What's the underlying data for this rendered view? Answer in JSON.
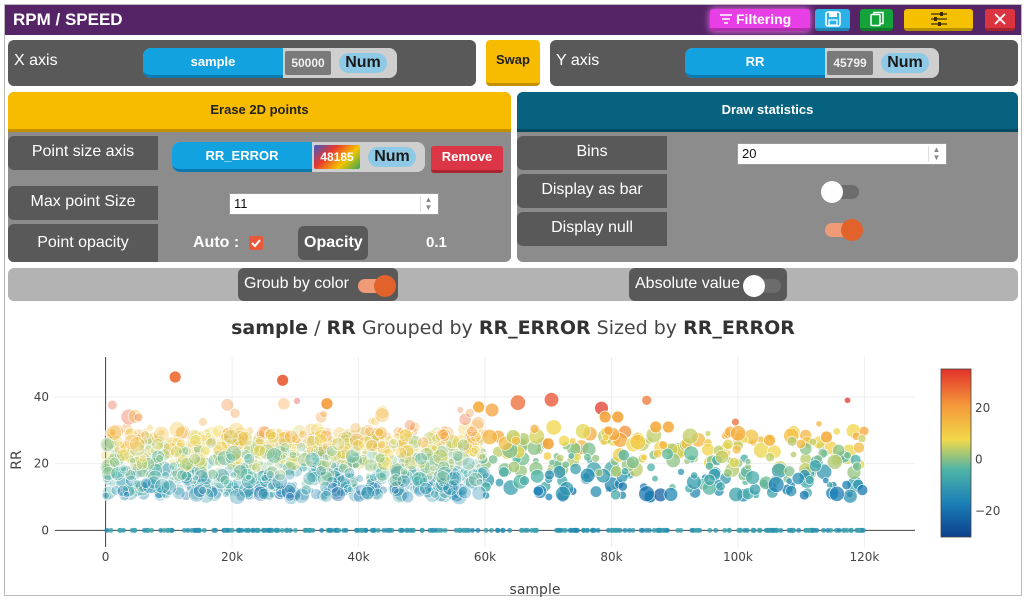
{
  "window": {
    "title": "RPM / SPEED"
  },
  "toolbar": {
    "filtering_label": "Filtering",
    "filtering_color": "#e83ee6",
    "icons": [
      "filter-icon",
      "save-icon",
      "copy-icon",
      "sliders-icon",
      "close-icon"
    ]
  },
  "x_axis": {
    "label": "X axis",
    "field": "sample",
    "count": "50000",
    "type": "Num"
  },
  "swap_label": "Swap",
  "y_axis": {
    "label": "Y axis",
    "field": "RR",
    "count": "45799",
    "type": "Num"
  },
  "left_panel": {
    "erase_label": "Erase 2D points",
    "point_size_axis": {
      "label": "Point size axis",
      "field": "RR_ERROR",
      "count": "48185",
      "type": "Num",
      "remove_label": "Remove"
    },
    "max_point_size": {
      "label": "Max point Size",
      "value": "11"
    },
    "point_opacity": {
      "label": "Point opacity",
      "auto_label": "Auto :",
      "auto_checked": true,
      "opacity_label": "Opacity",
      "opacity_value": "0.1"
    }
  },
  "right_panel": {
    "draw_label": "Draw statistics",
    "bins": {
      "label": "Bins",
      "value": "20"
    },
    "display_as_bar": {
      "label": "Display as bar",
      "on": false
    },
    "display_null": {
      "label": "Display null",
      "on": true
    }
  },
  "options": {
    "group_by_color": {
      "label": "Groub by color",
      "on": true
    },
    "absolute_value": {
      "label": "Absolute value",
      "on": false
    }
  },
  "chart": {
    "title_parts": {
      "x": "sample",
      "sep": " / ",
      "y": "RR",
      "grouped_text": " Grouped by ",
      "group": "RR_ERROR",
      "sized_text": " Sized by ",
      "size": "RR_ERROR"
    }
  },
  "chart_data": {
    "type": "scatter",
    "xlabel": "sample",
    "ylabel": "RR",
    "xlim": [
      -8000,
      128000
    ],
    "ylim": [
      -5,
      52
    ],
    "x_ticks": [
      0,
      20000,
      40000,
      60000,
      80000,
      100000,
      120000
    ],
    "x_tick_labels": [
      "0",
      "20k",
      "40k",
      "60k",
      "80k",
      "100k",
      "120k"
    ],
    "y_ticks": [
      0,
      20,
      40
    ],
    "y_tick_labels": [
      "0",
      "20",
      "40"
    ],
    "grid": true,
    "colorbar": {
      "range": [
        -30,
        35
      ],
      "ticks": [
        20,
        0,
        -20
      ],
      "tick_labels": [
        "20",
        "0",
        "−20"
      ],
      "colorscale": [
        "#0d3f8c",
        "#1a7fb6",
        "#4fb4a6",
        "#f1d84a",
        "#f59a3b",
        "#e2322a"
      ]
    },
    "series": [
      {
        "name": "points",
        "color_by": "RR_ERROR",
        "size_by": "RR_ERROR",
        "x_range": [
          0,
          120000
        ],
        "y_band": [
          10,
          30
        ],
        "dense_until": 60000
      },
      {
        "name": "null-band",
        "y": 0,
        "x_range": [
          0,
          120000
        ]
      }
    ],
    "highlighted_points": [
      {
        "x": 59000,
        "y": 37,
        "color_value": 18
      },
      {
        "x": 79000,
        "y": 34,
        "color_value": 20
      },
      {
        "x": 81000,
        "y": 34,
        "color_value": 20
      },
      {
        "x": 87000,
        "y": 31,
        "color_value": 18
      },
      {
        "x": 89000,
        "y": 31,
        "color_value": 18
      },
      {
        "x": 28000,
        "y": 45,
        "color_value": 30
      },
      {
        "x": 11000,
        "y": 46,
        "color_value": 28
      },
      {
        "x": 35000,
        "y": 38,
        "color_value": 22
      },
      {
        "x": 70000,
        "y": 26,
        "color_value": 20
      },
      {
        "x": 105000,
        "y": 27,
        "color_value": 16
      },
      {
        "x": 114000,
        "y": 28,
        "color_value": 18
      }
    ]
  }
}
